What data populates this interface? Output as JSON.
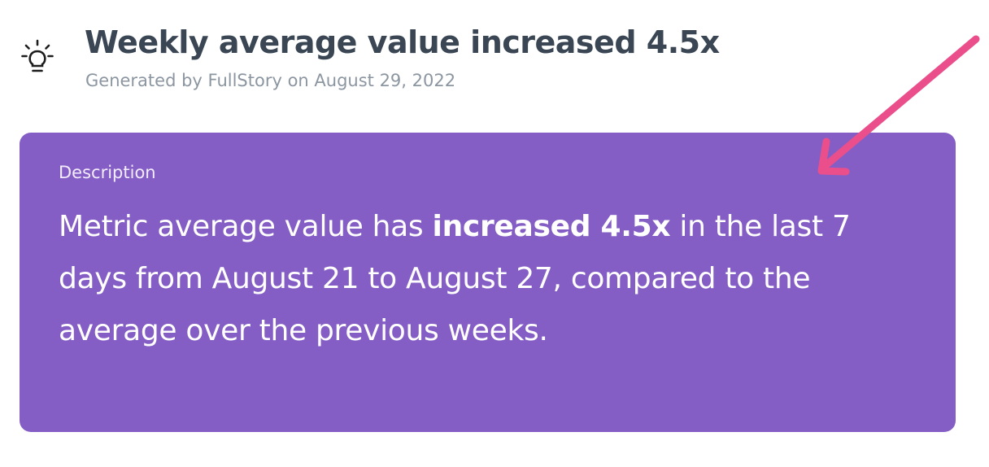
{
  "insight": {
    "icon": "lightbulb-icon",
    "title": "Weekly average value increased 4.5x",
    "subtitle": "Generated by FullStory on August 29, 2022"
  },
  "description_card": {
    "label": "Description",
    "text_before": "Metric average value has ",
    "text_bold": "increased 4.5x",
    "text_after": " in the last 7 days from August 21 to August 27, compared to the average over the previous weeks.",
    "background_color": "#855ec5"
  },
  "annotation": {
    "icon": "arrow-icon",
    "color": "#ea4f8c"
  }
}
